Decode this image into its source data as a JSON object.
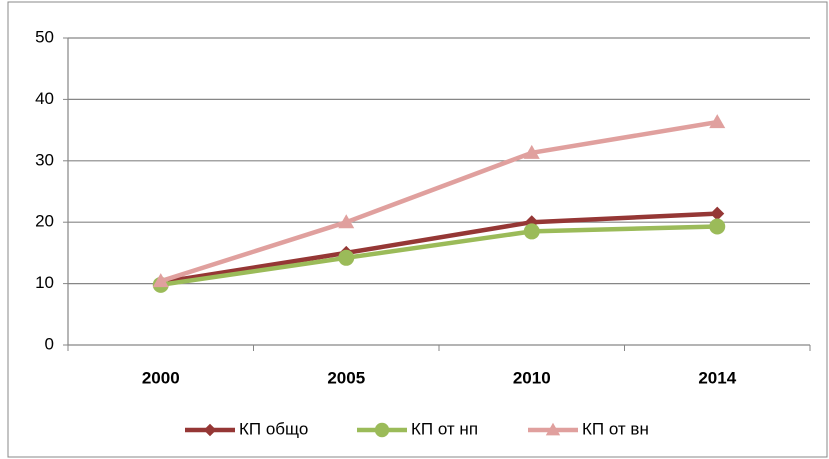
{
  "chart_data": {
    "type": "line",
    "categories": [
      "2000",
      "2005",
      "2010",
      "2014"
    ],
    "series": [
      {
        "name": "КП общо",
        "color": "#953735",
        "marker": "diamond",
        "values": [
          10.2,
          15.0,
          20.0,
          21.4
        ]
      },
      {
        "name": "КП от нп",
        "color": "#9bbb59",
        "marker": "circle",
        "values": [
          9.8,
          14.2,
          18.5,
          19.3
        ]
      },
      {
        "name": "КП от вн",
        "color": "#e0a09e",
        "marker": "triangle",
        "values": [
          10.4,
          20.0,
          31.3,
          36.3
        ]
      }
    ],
    "ylim": [
      0,
      50
    ],
    "yticks": [
      0,
      10,
      20,
      30,
      40,
      50
    ],
    "grid": true,
    "legend": "bottom"
  }
}
